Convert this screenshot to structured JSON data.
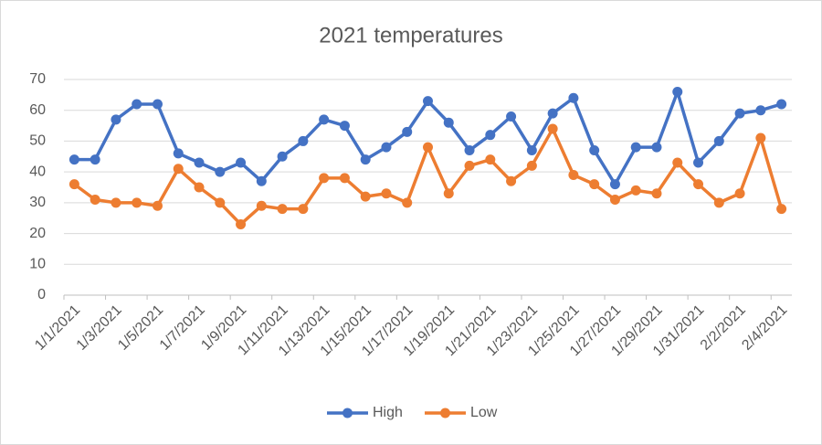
{
  "chart_data": {
    "type": "line",
    "title": "2021 temperatures",
    "categories": [
      "1/1/2021",
      null,
      "1/3/2021",
      null,
      "1/5/2021",
      null,
      "1/7/2021",
      null,
      "1/9/2021",
      null,
      "1/11/2021",
      null,
      "1/13/2021",
      null,
      "1/15/2021",
      null,
      "1/17/2021",
      null,
      "1/19/2021",
      null,
      "1/21/2021",
      null,
      "1/23/2021",
      null,
      "1/25/2021",
      null,
      "1/27/2021",
      null,
      "1/29/2021",
      null,
      "1/31/2021",
      null,
      "2/2/2021",
      null,
      "2/4/2021"
    ],
    "series": [
      {
        "name": "High",
        "color": "#4472c4",
        "values": [
          44,
          44,
          57,
          62,
          62,
          46,
          43,
          40,
          43,
          37,
          45,
          50,
          57,
          55,
          44,
          48,
          53,
          63,
          56,
          47,
          52,
          58,
          47,
          59,
          64,
          47,
          36,
          48,
          48,
          66,
          43,
          50,
          59,
          60,
          62
        ]
      },
      {
        "name": "Low",
        "color": "#ed7d31",
        "values": [
          36,
          31,
          30,
          30,
          29,
          41,
          35,
          30,
          23,
          29,
          28,
          28,
          38,
          38,
          32,
          33,
          30,
          48,
          33,
          42,
          44,
          37,
          42,
          54,
          39,
          36,
          31,
          34,
          33,
          43,
          36,
          30,
          33,
          51,
          28
        ]
      }
    ],
    "ylim": [
      0,
      70
    ],
    "yticks": [
      0,
      10,
      20,
      30,
      40,
      50,
      60,
      70
    ],
    "grid": true,
    "legend": "bottom"
  }
}
